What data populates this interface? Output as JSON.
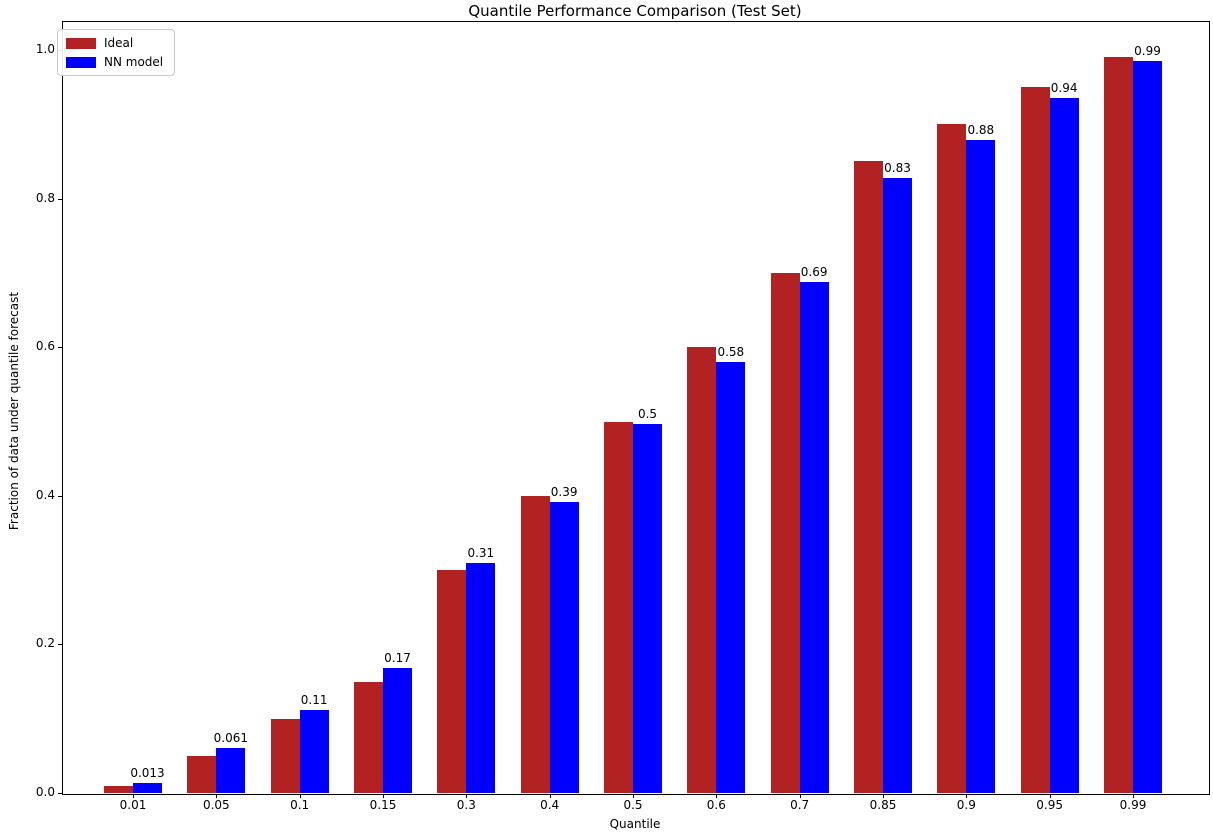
{
  "figure": {
    "title": "Quantile Performance Comparison (Test Set)"
  },
  "chart_data": {
    "type": "bar",
    "title": "Quantile Performance Comparison (Test Set)",
    "xlabel": "Quantile",
    "ylabel": "Fraction of data under quantile forecast",
    "categories": [
      "0.01",
      "0.05",
      "0.1",
      "0.15",
      "0.3",
      "0.4",
      "0.5",
      "0.6",
      "0.7",
      "0.85",
      "0.9",
      "0.95",
      "0.99"
    ],
    "series": [
      {
        "name": "Ideal",
        "color": "#B22222",
        "values": [
          0.01,
          0.05,
          0.1,
          0.15,
          0.3,
          0.4,
          0.5,
          0.6,
          0.7,
          0.85,
          0.9,
          0.95,
          0.99
        ]
      },
      {
        "name": "NN model",
        "color": "#0000FF",
        "values": [
          0.013,
          0.061,
          0.11,
          0.17,
          0.31,
          0.39,
          0.5,
          0.58,
          0.69,
          0.83,
          0.88,
          0.94,
          0.99
        ],
        "display_heights": [
          0.013,
          0.061,
          0.112,
          0.168,
          0.31,
          0.391,
          0.497,
          0.58,
          0.688,
          0.828,
          0.879,
          0.936,
          0.985
        ]
      }
    ],
    "bar_labels": [
      "0.013",
      "0.061",
      "0.11",
      "0.17",
      "0.31",
      "0.39",
      "0.5",
      "0.58",
      "0.69",
      "0.83",
      "0.88",
      "0.94",
      "0.99"
    ],
    "ylim": [
      0,
      1.04
    ],
    "yticks": [
      0,
      0.2,
      0.4,
      0.6,
      0.8,
      1.0
    ],
    "ytick_labels": [
      "0.0",
      "0.2",
      "0.4",
      "0.6",
      "0.8",
      "1.0"
    ],
    "legend": {
      "position": "upper left",
      "entries": [
        "Ideal",
        "NN model"
      ]
    },
    "grid": false
  }
}
